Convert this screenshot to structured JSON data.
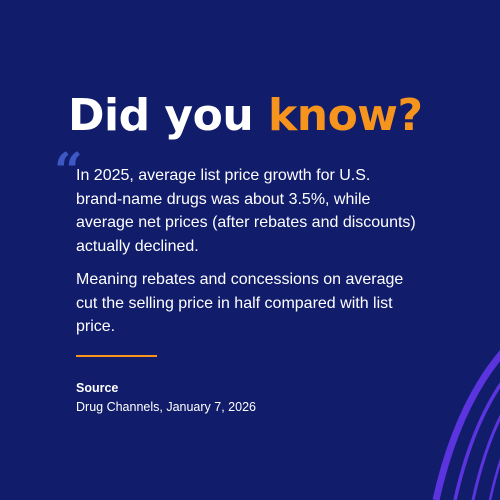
{
  "headline": {
    "part1": "Did you ",
    "part2": "know?"
  },
  "quote_mark": "“",
  "body": {
    "paragraph1": "In 2025, average list price growth for U.S. brand-name drugs was about 3.5%, while average net prices (after rebates and discounts) actually declined.",
    "paragraph2": "Meaning rebates and concessions on average cut the selling price in half compared with list price."
  },
  "source": {
    "label": "Source",
    "value": "Drug Channels, January 7, 2026"
  },
  "colors": {
    "background": "#111d6b",
    "accent": "#f7941d",
    "quote": "#3d57c4",
    "arc": "#6a3fe0",
    "text": "#ffffff"
  }
}
